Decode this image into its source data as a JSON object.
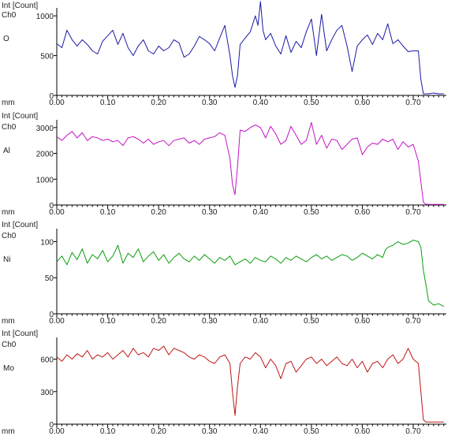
{
  "x_unit": "mm",
  "chart_data": [
    {
      "type": "line",
      "series_label": "Int [Count]",
      "channel": "Ch0",
      "element": "O",
      "color": "#1a1aa8",
      "ylim": [
        0,
        1100
      ],
      "yticks": [
        "0",
        "500",
        "1000"
      ],
      "ytick_values": [
        0,
        500,
        1000
      ],
      "xlim": [
        0,
        0.765
      ],
      "xticks": [
        "0.00",
        "0.10",
        "0.20",
        "0.30",
        "0.40",
        "0.50",
        "0.60",
        "0.70"
      ],
      "x": [
        0.0,
        0.01,
        0.02,
        0.03,
        0.04,
        0.05,
        0.06,
        0.07,
        0.08,
        0.09,
        0.1,
        0.11,
        0.12,
        0.13,
        0.14,
        0.15,
        0.16,
        0.17,
        0.18,
        0.19,
        0.2,
        0.21,
        0.22,
        0.23,
        0.24,
        0.25,
        0.26,
        0.27,
        0.28,
        0.29,
        0.3,
        0.31,
        0.32,
        0.33,
        0.34,
        0.345,
        0.35,
        0.355,
        0.36,
        0.37,
        0.38,
        0.39,
        0.395,
        0.4,
        0.405,
        0.41,
        0.42,
        0.43,
        0.44,
        0.45,
        0.46,
        0.47,
        0.48,
        0.49,
        0.5,
        0.51,
        0.52,
        0.53,
        0.54,
        0.55,
        0.56,
        0.57,
        0.58,
        0.59,
        0.6,
        0.61,
        0.62,
        0.63,
        0.64,
        0.65,
        0.66,
        0.67,
        0.68,
        0.69,
        0.7,
        0.71,
        0.715,
        0.72,
        0.725,
        0.73,
        0.74,
        0.75,
        0.76
      ],
      "values": [
        650,
        600,
        820,
        700,
        620,
        700,
        640,
        560,
        520,
        680,
        750,
        820,
        640,
        780,
        600,
        500,
        620,
        700,
        560,
        520,
        620,
        560,
        600,
        700,
        660,
        480,
        520,
        620,
        740,
        700,
        650,
        560,
        720,
        880,
        500,
        250,
        100,
        250,
        640,
        720,
        800,
        1000,
        880,
        1180,
        820,
        700,
        780,
        620,
        520,
        750,
        540,
        680,
        600,
        800,
        960,
        500,
        1020,
        560,
        700,
        820,
        880,
        620,
        300,
        620,
        700,
        760,
        640,
        780,
        700,
        900,
        650,
        700,
        620,
        550,
        560,
        560,
        200,
        20,
        20,
        20,
        30,
        20,
        20
      ]
    },
    {
      "type": "line",
      "series_label": "Int [Count]",
      "channel": "Ch0",
      "element": "Al",
      "color": "#c412c4",
      "ylim": [
        0,
        3300
      ],
      "yticks": [
        "0",
        "1000",
        "2000",
        "3000"
      ],
      "ytick_values": [
        0,
        1000,
        2000,
        3000
      ],
      "xlim": [
        0,
        0.765
      ],
      "xticks": [
        "0.00",
        "0.10",
        "0.20",
        "0.30",
        "0.40",
        "0.50",
        "0.60",
        "0.70"
      ],
      "x": [
        0.0,
        0.01,
        0.02,
        0.03,
        0.04,
        0.05,
        0.06,
        0.07,
        0.08,
        0.09,
        0.1,
        0.11,
        0.12,
        0.13,
        0.14,
        0.15,
        0.16,
        0.17,
        0.18,
        0.19,
        0.2,
        0.21,
        0.22,
        0.23,
        0.24,
        0.25,
        0.26,
        0.27,
        0.28,
        0.29,
        0.3,
        0.31,
        0.32,
        0.33,
        0.34,
        0.345,
        0.35,
        0.355,
        0.36,
        0.37,
        0.38,
        0.39,
        0.4,
        0.41,
        0.42,
        0.43,
        0.44,
        0.45,
        0.46,
        0.47,
        0.48,
        0.49,
        0.5,
        0.51,
        0.52,
        0.53,
        0.54,
        0.55,
        0.56,
        0.57,
        0.58,
        0.59,
        0.6,
        0.61,
        0.62,
        0.63,
        0.64,
        0.65,
        0.66,
        0.67,
        0.68,
        0.69,
        0.7,
        0.71,
        0.715,
        0.72,
        0.725,
        0.73,
        0.74,
        0.75,
        0.76
      ],
      "values": [
        2650,
        2500,
        2700,
        2850,
        2600,
        2800,
        2500,
        2650,
        2600,
        2500,
        2550,
        2450,
        2500,
        2300,
        2600,
        2650,
        2550,
        2400,
        2550,
        2350,
        2450,
        2500,
        2300,
        2500,
        2550,
        2600,
        2400,
        2500,
        2350,
        2550,
        2600,
        2650,
        2800,
        2700,
        1800,
        800,
        400,
        1500,
        2900,
        2850,
        3000,
        3100,
        3000,
        2600,
        3050,
        2750,
        2350,
        2500,
        3050,
        2700,
        2350,
        2500,
        3200,
        2350,
        2700,
        2200,
        2550,
        2500,
        2150,
        2350,
        2550,
        2600,
        1950,
        2250,
        2400,
        2350,
        2550,
        2450,
        2550,
        2150,
        2450,
        2250,
        2350,
        1700,
        900,
        100,
        30,
        20,
        20,
        20,
        20
      ]
    },
    {
      "type": "line",
      "series_label": "Int [Count]",
      "channel": "Ch0",
      "element": "Ni",
      "color": "#0c9e0c",
      "ylim": [
        0,
        118
      ],
      "yticks": [
        "0",
        "50",
        "100"
      ],
      "ytick_values": [
        0,
        50,
        100
      ],
      "xlim": [
        0,
        0.765
      ],
      "xticks": [
        "0.00",
        "0.10",
        "0.20",
        "0.30",
        "0.40",
        "0.50",
        "0.60",
        "0.70"
      ],
      "x": [
        0.0,
        0.01,
        0.02,
        0.03,
        0.04,
        0.05,
        0.06,
        0.07,
        0.08,
        0.09,
        0.1,
        0.11,
        0.12,
        0.13,
        0.14,
        0.15,
        0.16,
        0.17,
        0.18,
        0.19,
        0.2,
        0.21,
        0.22,
        0.23,
        0.24,
        0.25,
        0.26,
        0.27,
        0.28,
        0.29,
        0.3,
        0.31,
        0.32,
        0.33,
        0.34,
        0.35,
        0.36,
        0.37,
        0.38,
        0.39,
        0.4,
        0.41,
        0.42,
        0.43,
        0.44,
        0.45,
        0.46,
        0.47,
        0.48,
        0.49,
        0.5,
        0.51,
        0.52,
        0.53,
        0.54,
        0.55,
        0.56,
        0.57,
        0.58,
        0.59,
        0.6,
        0.61,
        0.62,
        0.63,
        0.64,
        0.645,
        0.65,
        0.66,
        0.67,
        0.68,
        0.69,
        0.7,
        0.71,
        0.715,
        0.72,
        0.725,
        0.73,
        0.74,
        0.75,
        0.76
      ],
      "values": [
        72,
        80,
        68,
        85,
        75,
        90,
        70,
        82,
        76,
        88,
        72,
        80,
        95,
        70,
        84,
        78,
        90,
        72,
        80,
        86,
        74,
        82,
        70,
        78,
        84,
        76,
        72,
        80,
        74,
        82,
        76,
        70,
        78,
        74,
        80,
        68,
        72,
        76,
        70,
        78,
        74,
        72,
        80,
        76,
        70,
        78,
        74,
        80,
        76,
        72,
        78,
        82,
        76,
        80,
        74,
        78,
        82,
        80,
        74,
        78,
        84,
        80,
        76,
        82,
        78,
        88,
        92,
        95,
        100,
        96,
        98,
        102,
        100,
        92,
        60,
        40,
        18,
        12,
        14,
        10
      ]
    },
    {
      "type": "line",
      "series_label": "Int [Count]",
      "channel": "Ch0",
      "element": "Mo",
      "color": "#c01414",
      "ylim": [
        0,
        800
      ],
      "yticks": [
        "0",
        "300",
        "600"
      ],
      "ytick_values": [
        0,
        300,
        600
      ],
      "xlim": [
        0,
        0.765
      ],
      "xticks": [
        "0.00",
        "0.10",
        "0.20",
        "0.30",
        "0.40",
        "0.50",
        "0.60",
        "0.70"
      ],
      "x": [
        0.0,
        0.01,
        0.02,
        0.03,
        0.04,
        0.05,
        0.06,
        0.07,
        0.08,
        0.09,
        0.1,
        0.11,
        0.12,
        0.13,
        0.14,
        0.15,
        0.16,
        0.17,
        0.18,
        0.19,
        0.2,
        0.21,
        0.22,
        0.23,
        0.24,
        0.25,
        0.26,
        0.27,
        0.28,
        0.29,
        0.3,
        0.31,
        0.32,
        0.33,
        0.34,
        0.345,
        0.35,
        0.355,
        0.36,
        0.37,
        0.38,
        0.39,
        0.4,
        0.41,
        0.42,
        0.43,
        0.44,
        0.45,
        0.46,
        0.47,
        0.48,
        0.49,
        0.5,
        0.51,
        0.52,
        0.53,
        0.54,
        0.55,
        0.56,
        0.57,
        0.58,
        0.59,
        0.6,
        0.61,
        0.62,
        0.63,
        0.64,
        0.65,
        0.66,
        0.67,
        0.68,
        0.69,
        0.7,
        0.71,
        0.715,
        0.72,
        0.725,
        0.73,
        0.74,
        0.75,
        0.76
      ],
      "values": [
        620,
        580,
        640,
        600,
        650,
        620,
        680,
        600,
        640,
        620,
        660,
        600,
        640,
        680,
        620,
        700,
        640,
        660,
        620,
        700,
        680,
        720,
        640,
        700,
        680,
        660,
        620,
        600,
        640,
        620,
        580,
        560,
        620,
        640,
        560,
        300,
        80,
        350,
        560,
        620,
        600,
        660,
        620,
        520,
        600,
        540,
        420,
        560,
        580,
        480,
        540,
        600,
        620,
        560,
        600,
        540,
        580,
        620,
        560,
        540,
        600,
        520,
        580,
        480,
        560,
        580,
        520,
        600,
        640,
        560,
        600,
        700,
        600,
        560,
        300,
        40,
        20,
        20,
        20,
        20,
        20
      ]
    }
  ]
}
